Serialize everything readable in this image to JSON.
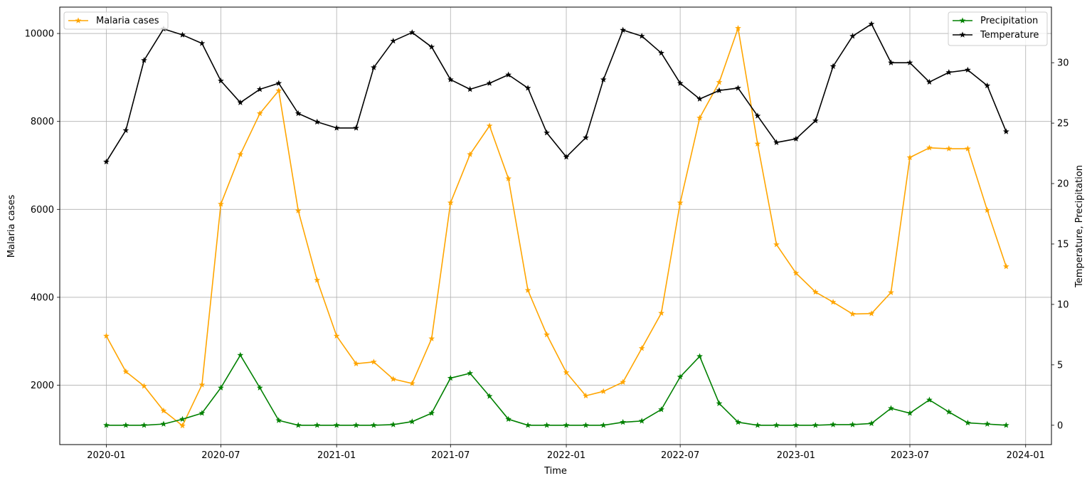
{
  "chart_data": {
    "type": "line",
    "xlabel": "Time",
    "ylabel_left": "Malaria cases",
    "ylabel_right": "Temperature, Precipitation",
    "x_tick_labels": [
      "2020-01",
      "2020-07",
      "2021-01",
      "2021-07",
      "2022-01",
      "2022-07",
      "2023-01",
      "2023-07",
      "2024-01"
    ],
    "y_left_ticks": [
      "2000",
      "4000",
      "6000",
      "8000",
      "10000"
    ],
    "y_right_ticks": [
      "0",
      "5",
      "10",
      "15",
      "20",
      "25",
      "30"
    ],
    "y_left_lim": [
      650,
      10600
    ],
    "y_right_lim": [
      -1.6,
      34.6
    ],
    "x_lim": [
      "2019-10-19",
      "2024-02-11"
    ],
    "grid": true,
    "x": [
      "2020-01-01",
      "2020-02-01",
      "2020-03-01",
      "2020-04-01",
      "2020-05-01",
      "2020-06-01",
      "2020-07-01",
      "2020-08-01",
      "2020-09-01",
      "2020-10-01",
      "2020-11-01",
      "2020-12-01",
      "2021-01-01",
      "2021-02-01",
      "2021-03-01",
      "2021-04-01",
      "2021-05-01",
      "2021-06-01",
      "2021-07-01",
      "2021-08-01",
      "2021-09-01",
      "2021-10-01",
      "2021-11-01",
      "2021-12-01",
      "2022-01-01",
      "2022-02-01",
      "2022-03-01",
      "2022-04-01",
      "2022-05-01",
      "2022-06-01",
      "2022-07-01",
      "2022-08-01",
      "2022-09-01",
      "2022-10-01",
      "2022-11-01",
      "2022-12-01",
      "2023-01-01",
      "2023-02-01",
      "2023-03-01",
      "2023-04-01",
      "2023-05-01",
      "2023-06-01",
      "2023-07-01",
      "2023-08-01",
      "2023-09-01",
      "2023-10-01",
      "2023-11-01",
      "2023-12-01"
    ],
    "series": [
      {
        "name": "Malaria cases",
        "axis": "left",
        "color": "#ffa500",
        "marker": "star",
        "values": [
          3120,
          2310,
          1980,
          1420,
          1080,
          2010,
          6120,
          7250,
          8180,
          8700,
          5970,
          4390,
          3120,
          2490,
          2530,
          2140,
          2040,
          3060,
          6150,
          7250,
          7900,
          6700,
          4160,
          3150,
          2290,
          1760,
          1860,
          2070,
          2840,
          3640,
          6150,
          8080,
          8890,
          10120,
          7490,
          5200,
          4550,
          4120,
          3890,
          3620,
          3630,
          4110,
          7180,
          7400,
          7380,
          7380,
          5980,
          4700
        ]
      },
      {
        "name": "Precipitation",
        "axis": "right",
        "color": "#008000",
        "marker": "star",
        "values": [
          0,
          0,
          0,
          0.1,
          0.5,
          1,
          3.1,
          5.8,
          3.1,
          0.4,
          0,
          0,
          0,
          0,
          0,
          0.05,
          0.3,
          1,
          3.9,
          4.3,
          2.4,
          0.5,
          0,
          0,
          0,
          0,
          0,
          0.25,
          0.35,
          1.3,
          4,
          5.7,
          1.8,
          0.25,
          0,
          0,
          0,
          0,
          0.05,
          0.05,
          0.15,
          1.4,
          1,
          2.1,
          1.1,
          0.2,
          0.1,
          0
        ]
      },
      {
        "name": "Temperature",
        "axis": "right",
        "color": "#000000",
        "marker": "star",
        "values": [
          21.8,
          24.4,
          30.2,
          32.8,
          32.3,
          31.6,
          28.5,
          26.7,
          27.8,
          28.3,
          25.8,
          25.1,
          24.6,
          24.6,
          29.6,
          31.8,
          32.5,
          31.3,
          28.6,
          27.8,
          28.3,
          29,
          27.9,
          24.2,
          22.2,
          23.8,
          28.6,
          32.7,
          32.2,
          30.8,
          28.3,
          27,
          27.7,
          27.9,
          25.6,
          23.4,
          23.7,
          25.2,
          29.7,
          32.2,
          33.2,
          30,
          30,
          28.4,
          29.2,
          29.4,
          28.1,
          24.3
        ]
      }
    ],
    "legend_left": {
      "placement": "upper-left",
      "entries": [
        "Malaria cases"
      ]
    },
    "legend_right": {
      "placement": "upper-right",
      "entries": [
        "Precipitation",
        "Temperature"
      ]
    }
  }
}
